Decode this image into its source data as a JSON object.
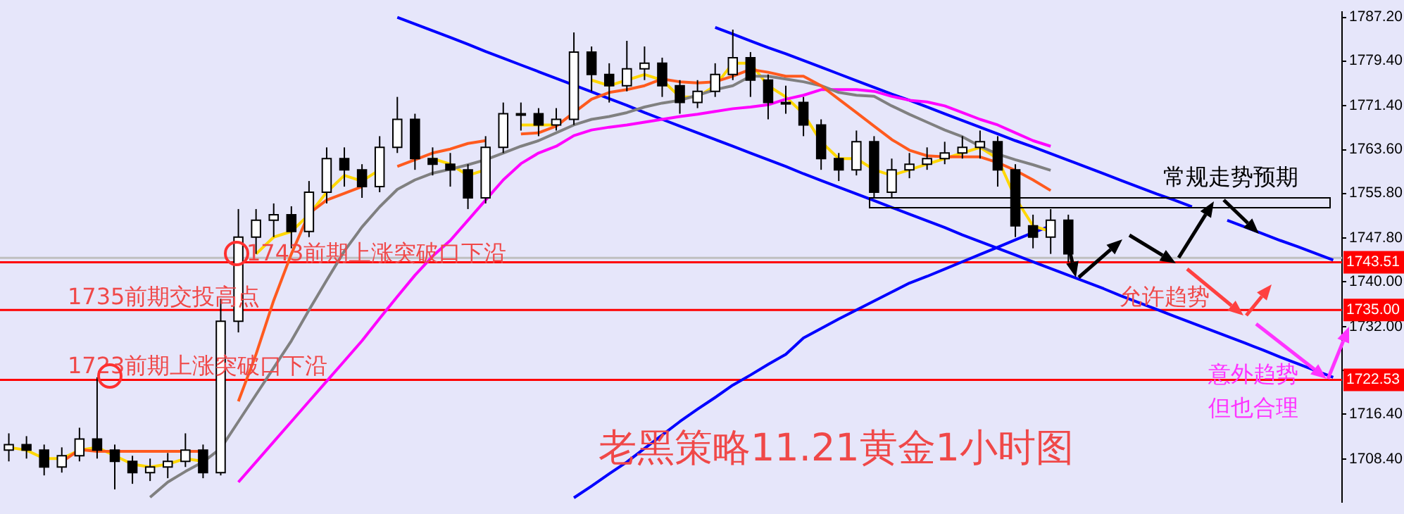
{
  "chart_data": {
    "type": "candlestick",
    "title": "老黑策略11.21黄金1小时图",
    "categories": [
      null,
      null,
      null,
      null,
      null,
      null,
      null,
      null,
      null,
      null,
      null,
      null,
      null,
      null,
      null,
      null,
      null,
      null,
      null,
      null,
      null,
      null,
      null,
      null,
      null,
      null,
      null,
      null,
      null,
      null,
      null,
      null,
      null,
      null,
      null,
      null,
      null,
      null,
      null,
      null,
      null,
      null,
      null,
      null,
      null,
      null,
      null,
      null,
      null,
      null,
      null,
      null,
      null,
      null,
      null,
      null,
      null,
      null,
      null,
      null,
      null,
      null,
      null,
      null,
      null,
      null,
      null,
      null,
      null,
      null,
      null,
      null,
      null,
      null,
      null,
      null
    ],
    "colors": [
      "#ffffff",
      "#000000",
      "#000000",
      "#ffffff",
      "#ffffff",
      "#000000",
      "#000000",
      "#000000",
      "#ffffff",
      "#ffffff",
      "#ffffff",
      "#000000",
      "#ffffff",
      "#ffffff",
      "#ffffff",
      "#ffffff",
      "#000000",
      "#ffffff",
      "#ffffff",
      "#000000",
      "#000000",
      "#ffffff",
      "#ffffff",
      "#000000",
      "#000000",
      "#000000",
      "#000000",
      "#ffffff",
      "#ffffff",
      "#ffffff",
      "#000000",
      "#ffffff",
      "#ffffff",
      "#000000",
      "#000000",
      "#ffffff",
      "#ffffff",
      "#000000",
      "#000000",
      "#ffffff",
      "#ffffff",
      "#ffffff",
      "#000000",
      "#000000",
      "#ffffff",
      "#000000",
      "#000000",
      "#000000",
      "#ffffff",
      "#000000",
      "#ffffff",
      "#ffffff",
      "#ffffff",
      "#ffffff",
      "#ffffff",
      "#ffffff",
      "#000000",
      "#000000",
      "#000000",
      "#ffffff",
      "#000000",
      null,
      null,
      null,
      null,
      null,
      null,
      null,
      null,
      null,
      null,
      null,
      null,
      null,
      null,
      null
    ],
    "ohlc": [
      [
        1710,
        1713,
        1708,
        1711
      ],
      [
        1711,
        1712.5,
        1708.5,
        1710
      ],
      [
        1710,
        1711,
        1705.5,
        1707
      ],
      [
        1707,
        1710.5,
        1706,
        1709
      ],
      [
        1709,
        1714,
        1708,
        1712
      ],
      [
        1712,
        1723,
        1708.5,
        1710
      ],
      [
        1710,
        1711,
        1703,
        1708
      ],
      [
        1708,
        1709,
        1704,
        1706
      ],
      [
        1706,
        1708.5,
        1704.5,
        1707
      ],
      [
        1707,
        1709.5,
        1705,
        1708
      ],
      [
        1708,
        1713,
        1707,
        1710
      ],
      [
        1710,
        1711,
        1705,
        1706
      ],
      [
        1706,
        1737,
        1705.5,
        1733
      ],
      [
        1733,
        1753,
        1731,
        1748
      ],
      [
        1748,
        1753,
        1745,
        1751
      ],
      [
        1751,
        1754,
        1748,
        1752
      ],
      [
        1752,
        1753.5,
        1746,
        1749
      ],
      [
        1749,
        1758,
        1748,
        1756
      ],
      [
        1756,
        1764,
        1754,
        1762
      ],
      [
        1762,
        1764,
        1757,
        1760
      ],
      [
        1760,
        1761,
        1755,
        1757
      ],
      [
        1757,
        1766,
        1756,
        1764
      ],
      [
        1764,
        1773,
        1763,
        1769
      ],
      [
        1769,
        1770,
        1760,
        1762
      ],
      [
        1762,
        1764,
        1759,
        1761
      ],
      [
        1761,
        1763,
        1757,
        1760
      ],
      [
        1760,
        1761,
        1753,
        1755
      ],
      [
        1755,
        1766,
        1754,
        1764
      ],
      [
        1764,
        1772,
        1763,
        1770
      ],
      [
        1770,
        1772,
        1767,
        1770
      ],
      [
        1770,
        1771,
        1766,
        1768
      ],
      [
        1768,
        1771,
        1767,
        1769
      ],
      [
        1769,
        1784.5,
        1768,
        1781
      ],
      [
        1781,
        1782,
        1774,
        1777
      ],
      [
        1777,
        1779,
        1772,
        1775
      ],
      [
        1775,
        1783,
        1774,
        1778
      ],
      [
        1778,
        1782,
        1776,
        1779
      ],
      [
        1779,
        1780,
        1773,
        1775
      ],
      [
        1775,
        1776,
        1770,
        1772
      ],
      [
        1772,
        1776,
        1771,
        1774
      ],
      [
        1774,
        1779,
        1773,
        1777
      ],
      [
        1777,
        1785,
        1776,
        1780
      ],
      [
        1780,
        1781,
        1773,
        1776
      ],
      [
        1776,
        1777,
        1769,
        1772
      ],
      [
        1772,
        1775,
        1770,
        1772
      ],
      [
        1772,
        1773,
        1766,
        1768
      ],
      [
        1768,
        1769,
        1760,
        1762
      ],
      [
        1762,
        1763,
        1758,
        1760
      ],
      [
        1760,
        1767,
        1759,
        1765
      ],
      [
        1765,
        1766,
        1755,
        1756
      ],
      [
        1756,
        1762,
        1755,
        1760
      ],
      [
        1760,
        1763,
        1758.5,
        1761
      ],
      [
        1761,
        1764,
        1760,
        1762
      ],
      [
        1762,
        1765,
        1761,
        1763
      ],
      [
        1763,
        1766,
        1762,
        1764
      ],
      [
        1764,
        1767,
        1762,
        1765
      ],
      [
        1765,
        1766,
        1757,
        1760
      ],
      [
        1760,
        1761,
        1748,
        1750
      ],
      [
        1750,
        1752,
        1746,
        1748
      ],
      [
        1748,
        1753,
        1745,
        1751
      ],
      [
        1751,
        1752,
        1743.5,
        1745
      ],
      null,
      null,
      null,
      null,
      null,
      null,
      null,
      null,
      null,
      null,
      null,
      null,
      null,
      null,
      null
    ],
    "series": [
      {
        "type": "line",
        "color": "#ff5a1e",
        "values": [
          null,
          null,
          null,
          1707.9,
          1710.1,
          1709.8,
          1709.8,
          1709.8,
          1709.8,
          1709.8,
          1709.8,
          1709.8,
          null,
          1718.7,
          1727.1,
          1736.7,
          1745.0,
          1752.2,
          1754.6,
          1755.8,
          1757.0,
          null,
          1760.6,
          1761.8,
          1763.0,
          1763.7,
          1764.7,
          1765.2,
          null,
          1766.4,
          1766.6,
          1767.8,
          1770.2,
          1772.6,
          1773.8,
          1774.3,
          1775.0,
          1776.2,
          1775.7,
          1775.5,
          1775.7,
          1776.7,
          1777.9,
          1777.4,
          1776.7,
          1776.7,
          1775.0,
          1772.6,
          1770.2,
          1767.8,
          1765.4,
          1763.5,
          1762.5,
          1762.3,
          1762.3,
          1762.3,
          1761.3,
          1759.9,
          1758.2,
          1756.3,
          null,
          null,
          null,
          null,
          null,
          null,
          null,
          null,
          null,
          null,
          null,
          null,
          null,
          null,
          null,
          null
        ]
      },
      {
        "type": "line",
        "color": "#808080",
        "values": [
          null,
          null,
          null,
          null,
          null,
          null,
          null,
          null,
          1701.6,
          1704.3,
          1706.2,
          1707.9,
          1710.3,
          1715.1,
          1719.9,
          1724.7,
          1729.5,
          1735.0,
          1740.3,
          1745.5,
          1749.8,
          1753.4,
          1756.5,
          1758.2,
          1759.4,
          1760.1,
          1760.9,
          1761.8,
          1763.0,
          1764.2,
          1765.2,
          1766.6,
          1768.0,
          1769.0,
          1769.5,
          1770.2,
          1771.2,
          1771.9,
          1772.4,
          1773.3,
          1774.3,
          1775.0,
          1776.7,
          1776.7,
          1776.2,
          1775.7,
          1775.0,
          1773.8,
          1773.3,
          1773.1,
          1771.4,
          1769.9,
          1768.5,
          1767.1,
          1765.9,
          1764.2,
          1762.8,
          1761.8,
          1760.9,
          1759.9,
          null,
          null,
          null,
          null,
          null,
          null,
          null,
          null,
          null,
          null,
          null,
          null,
          null,
          null,
          null,
          null
        ]
      },
      {
        "type": "line",
        "color": "#ff00ff",
        "values": [
          null,
          null,
          null,
          null,
          null,
          null,
          null,
          null,
          null,
          null,
          null,
          null,
          null,
          1704.3,
          1707.9,
          1711.5,
          1715.1,
          1718.7,
          1722.3,
          1725.9,
          1729.5,
          1733.5,
          1737.4,
          1741.2,
          1744.6,
          1747.4,
          1751.0,
          1754.6,
          1758.2,
          1761.1,
          1763.0,
          1764.2,
          1766.1,
          1767.1,
          1767.6,
          1768.0,
          1768.5,
          1769.0,
          1769.5,
          1769.9,
          1770.4,
          1770.9,
          1771.2,
          1771.6,
          1772.6,
          1773.3,
          1774.3,
          1774.3,
          1774.3,
          1774.0,
          1773.1,
          1772.4,
          1772.1,
          1771.4,
          1770.2,
          1769.0,
          1768.0,
          1766.6,
          1765.2,
          1764.2,
          null,
          null,
          null,
          null,
          null,
          null,
          null,
          null,
          null,
          null,
          null,
          null,
          null,
          null,
          null,
          null
        ]
      },
      {
        "type": "line",
        "color": "#ffd700",
        "values": [
          1710.5,
          1710,
          1708.5,
          1708.5,
          1710,
          1710.5,
          1709,
          1707.5,
          1707,
          1707.5,
          1708.5,
          1708,
          null,
          null,
          1745,
          1748,
          1749,
          1752,
          1756,
          1759,
          1758,
          1760,
          null,
          null,
          1762,
          1761,
          1759,
          1760,
          null,
          1768,
          1768,
          1768,
          null,
          1776,
          1775,
          1776,
          1777,
          1776,
          1773,
          1773,
          1775,
          1779,
          1779,
          1775,
          1773,
          1770,
          1765,
          1762,
          1762,
          1760,
          1759,
          1760,
          1761,
          1762,
          1763,
          1764,
          1762,
          1755,
          1750,
          1749,
          null,
          null,
          null,
          null,
          null,
          null,
          null,
          null,
          null,
          null,
          null,
          null,
          null,
          null,
          null,
          null
        ]
      },
      {
        "type": "line",
        "color": "#0000ff",
        "values": [
          null,
          null,
          null,
          null,
          null,
          null,
          null,
          null,
          null,
          null,
          null,
          null,
          null,
          null,
          null,
          null,
          null,
          null,
          null,
          null,
          null,
          null,
          null,
          null,
          null,
          null,
          null,
          null,
          null,
          null,
          null,
          null,
          1701.5,
          1703.6,
          1705.8,
          1707.9,
          1710.3,
          1712.7,
          1715.1,
          1717.3,
          1719.4,
          1721.6,
          1723.4,
          1725.3,
          1727.1,
          1730.0,
          1731.7,
          1733.4,
          1735.0,
          1736.6,
          1738.2,
          1739.8,
          1741.0,
          1742.3,
          1743.6,
          1744.9,
          1746.2,
          1747.5,
          1748.8,
          1750.0,
          null,
          null,
          null,
          null,
          null,
          null,
          null,
          null,
          null,
          null,
          null,
          null,
          null,
          null,
          null,
          null
        ]
      },
      {
        "type": "line",
        "color": "#0000ff",
        "values": [
          null,
          null,
          null,
          null,
          null,
          null,
          null,
          null,
          null,
          null,
          null,
          null,
          null,
          null,
          null,
          null,
          null,
          null,
          null,
          null,
          null,
          null,
          null,
          null,
          null,
          null,
          null,
          null,
          null,
          null,
          null,
          null,
          null,
          null,
          null,
          null,
          null,
          null,
          null,
          null,
          1785.4,
          1784.2,
          1783.0,
          1781.8,
          1780.7,
          1779.5,
          1778.3,
          1777.1,
          1775.9,
          1774.7,
          1773.5,
          1772.4,
          1771.2,
          1770.0,
          1768.8,
          1767.6,
          1766.4,
          1765.2,
          1764.1,
          1762.9,
          1761.7,
          1760.5,
          1759.3,
          1758.1,
          1756.9,
          1755.7,
          1754.6,
          1753.4,
          null,
          1751.0,
          1749.8,
          1748.6,
          1747.4,
          1746.3,
          1745.1,
          1743.9
        ]
      },
      {
        "type": "line",
        "color": "#0000ff",
        "values": [
          null,
          null,
          null,
          null,
          null,
          null,
          null,
          null,
          null,
          null,
          null,
          null,
          null,
          null,
          null,
          null,
          null,
          null,
          null,
          null,
          null,
          null,
          1787.2,
          1786.0,
          1784.8,
          1783.6,
          1782.4,
          1781.1,
          1779.9,
          1778.7,
          1777.5,
          1776.3,
          1775.1,
          1773.9,
          1772.7,
          1771.5,
          1770.2,
          1769.0,
          1767.8,
          1766.6,
          1765.4,
          1764.2,
          1763.0,
          1761.8,
          1760.6,
          1759.3,
          1758.1,
          1756.9,
          1755.7,
          1754.5,
          1753.3,
          1752.1,
          1750.9,
          1749.7,
          1748.4,
          1747.2,
          1746.0,
          1744.8,
          1743.6,
          1742.4,
          1741.2,
          1740.0,
          1738.8,
          1737.5,
          1736.3,
          1735.1,
          1733.9,
          1732.7,
          1731.5,
          1730.3,
          1729.1,
          1727.9,
          1726.6,
          1725.4,
          1724.2,
          1723.0
        ]
      }
    ],
    "ylim": [
      1700.7,
      1788.2
    ],
    "yticks": [
      {
        "value": 1787.2,
        "label": "1787.20"
      },
      {
        "value": 1779.4,
        "label": "1779.40"
      },
      {
        "value": 1771.4,
        "label": "1771.40"
      },
      {
        "value": 1763.6,
        "label": "1763.60"
      },
      {
        "value": 1755.8,
        "label": "1755.80"
      },
      {
        "value": 1747.8,
        "label": "1747.80"
      },
      {
        "value": 1740,
        "label": "1740.00"
      },
      {
        "value": 1732,
        "label": "1732.00"
      },
      {
        "value": 1724.2,
        "label": null
      },
      {
        "value": 1716.4,
        "label": "1716.40"
      },
      {
        "value": 1708.4,
        "label": "1708.40"
      }
    ],
    "ref_lines": [
      {
        "axis": "y",
        "value": 1744.3,
        "color": "#c0c0c0"
      },
      {
        "axis": "y",
        "value": 1743.51,
        "label": "1743.51",
        "color": "#ff0000"
      },
      {
        "axis": "y",
        "value": 1735,
        "label": "1735.00",
        "color": "#ff0000"
      },
      {
        "axis": "y",
        "value": 1722.53,
        "label": "1722.53",
        "color": "#ff0000"
      }
    ],
    "annotations": [
      "1743前期上涨突破口下沿",
      "1735前期交投高点",
      "1723前期上涨突破口下沿",
      "常规走势预期",
      "允许趋势",
      "意外趋势",
      "但也合理"
    ],
    "tick_labels": "y",
    "grid": false,
    "legend": false
  }
}
